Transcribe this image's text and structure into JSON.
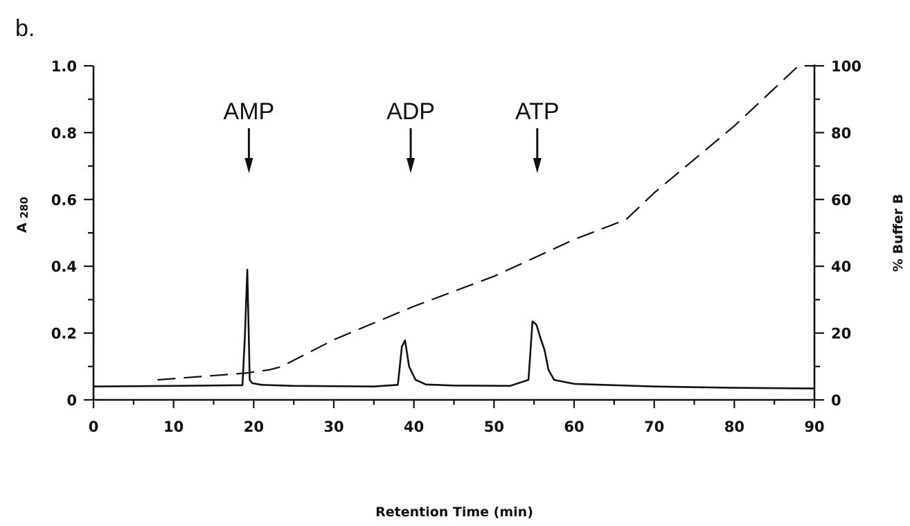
{
  "panel_label": "b.",
  "chart_data": {
    "type": "line",
    "title": "",
    "xlabel": "Retention Time (min)",
    "ylabel_main": "A",
    "ylabel_sub": "280",
    "y2label": "% Buffer B",
    "xlim": [
      0,
      90
    ],
    "ylim": [
      0,
      1.0
    ],
    "y2lim": [
      0,
      100
    ],
    "x_ticks": [
      0,
      10,
      20,
      30,
      40,
      50,
      60,
      70,
      80,
      90
    ],
    "x_tick_labels": [
      "0",
      "10",
      "20",
      "30",
      "40",
      "50",
      "60",
      "70",
      "80",
      "90"
    ],
    "y_ticks": [
      0,
      0.2,
      0.4,
      0.6,
      0.8,
      1.0
    ],
    "y_tick_labels": [
      "0",
      "0.2",
      "0.4",
      "0.6",
      "0.8",
      "1.0"
    ],
    "y_minor_ticks": [
      0.1,
      0.3,
      0.5,
      0.7,
      0.9
    ],
    "y2_ticks": [
      0,
      20,
      40,
      60,
      80,
      100
    ],
    "y2_tick_labels": [
      "0",
      "20",
      "40",
      "60",
      "80",
      "100"
    ],
    "y2_minor_ticks": [
      10,
      30,
      50,
      70,
      90
    ],
    "grid": false,
    "series": [
      {
        "axis": "left",
        "style": "solid",
        "x": [
          0,
          10,
          18.6,
          18.9,
          19.2,
          19.5,
          19.8,
          21,
          25,
          35,
          38.0,
          38.5,
          38.9,
          39.4,
          40.2,
          41.5,
          45,
          52,
          54.3,
          54.8,
          55.3,
          55.8,
          56.3,
          56.8,
          57.5,
          60,
          70,
          80,
          90
        ],
        "y": [
          0.04,
          0.042,
          0.044,
          0.19,
          0.39,
          0.06,
          0.05,
          0.045,
          0.042,
          0.04,
          0.045,
          0.16,
          0.178,
          0.1,
          0.06,
          0.046,
          0.043,
          0.042,
          0.06,
          0.235,
          0.225,
          0.185,
          0.15,
          0.09,
          0.06,
          0.048,
          0.04,
          0.036,
          0.034
        ]
      },
      {
        "axis": "right",
        "style": "dashed",
        "x": [
          8,
          19,
          22,
          23.5,
          30,
          40,
          50,
          60,
          66.5,
          70,
          80,
          88,
          90
        ],
        "y": [
          6,
          8,
          9,
          10,
          18,
          28,
          37,
          48,
          54,
          62,
          82,
          100,
          100
        ]
      }
    ],
    "annotations": [
      {
        "text": "AMP",
        "x": 19.4
      },
      {
        "text": "ADP",
        "x": 39.6
      },
      {
        "text": "ATP",
        "x": 55.4
      }
    ]
  }
}
